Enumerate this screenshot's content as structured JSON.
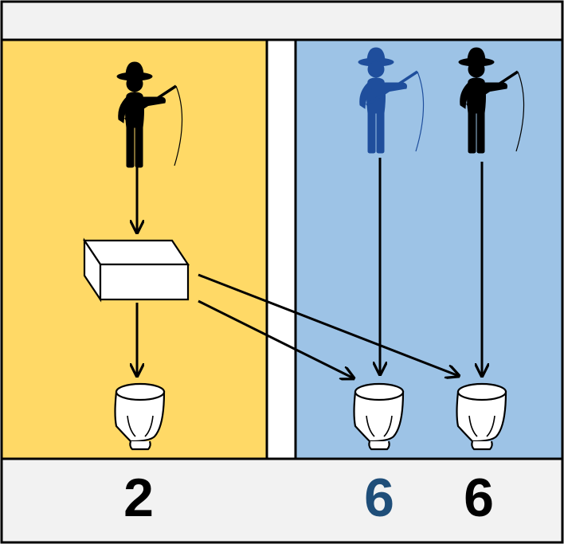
{
  "colors": {
    "frame": "#000000",
    "header_bg": "#f2f2f2",
    "footer_bg": "#f2f2f2",
    "left_panel": "#ffd966",
    "right_panel": "#9dc3e6",
    "highlight_fisher": "#1f4e9c",
    "default_fisher": "#000000",
    "left_score_color": "#000000",
    "mid_score_color": "#1f4e79",
    "right_score_color": "#000000"
  },
  "icons": {
    "fisher": "fisherman-icon",
    "box": "open-box-icon",
    "bowl": "bowl-icon",
    "arrow": "arrow-down-icon"
  },
  "scores": {
    "left": "2",
    "middle": "6",
    "right": "6"
  }
}
